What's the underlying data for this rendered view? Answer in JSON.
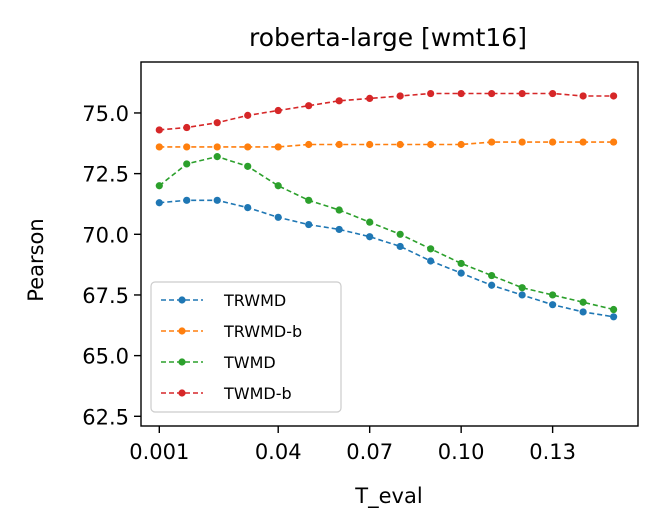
{
  "chart_data": {
    "type": "line",
    "title": "roberta-large [wmt16]",
    "xlabel": "T_eval",
    "ylabel": "Pearson",
    "x": [
      0.001,
      0.01,
      0.02,
      0.03,
      0.04,
      0.05,
      0.06,
      0.07,
      0.08,
      0.09,
      0.1,
      0.11,
      0.12,
      0.13,
      0.14,
      0.15
    ],
    "xlim": [
      -0.005,
      0.158
    ],
    "ylim": [
      62.1,
      77.1
    ],
    "xticks": [
      0.001,
      0.04,
      0.07,
      0.1,
      0.13
    ],
    "xtick_labels": [
      "0.001",
      "0.04",
      "0.07",
      "0.10",
      "0.13"
    ],
    "yticks": [
      62.5,
      65.0,
      67.5,
      70.0,
      72.5,
      75.0
    ],
    "ytick_labels": [
      "62.5",
      "65.0",
      "67.5",
      "70.0",
      "72.5",
      "75.0"
    ],
    "grid": false,
    "legend_position": "lower-left",
    "series": [
      {
        "name": "TRWMD",
        "color": "#1f77b4",
        "values": [
          71.3,
          71.4,
          71.4,
          71.1,
          70.7,
          70.4,
          70.2,
          69.9,
          69.5,
          68.9,
          68.4,
          67.9,
          67.5,
          67.1,
          66.8,
          66.6
        ]
      },
      {
        "name": "TRWMD-b",
        "color": "#ff7f0e",
        "values": [
          73.6,
          73.6,
          73.6,
          73.6,
          73.6,
          73.7,
          73.7,
          73.7,
          73.7,
          73.7,
          73.7,
          73.8,
          73.8,
          73.8,
          73.8,
          73.8
        ]
      },
      {
        "name": "TWMD",
        "color": "#2ca02c",
        "values": [
          72.0,
          72.9,
          73.2,
          72.8,
          72.0,
          71.4,
          71.0,
          70.5,
          70.0,
          69.4,
          68.8,
          68.3,
          67.8,
          67.5,
          67.2,
          66.9
        ]
      },
      {
        "name": "TWMD-b",
        "color": "#d62728",
        "values": [
          74.3,
          74.4,
          74.6,
          74.9,
          75.1,
          75.3,
          75.5,
          75.6,
          75.7,
          75.8,
          75.8,
          75.8,
          75.8,
          75.8,
          75.7,
          75.7
        ]
      }
    ]
  }
}
